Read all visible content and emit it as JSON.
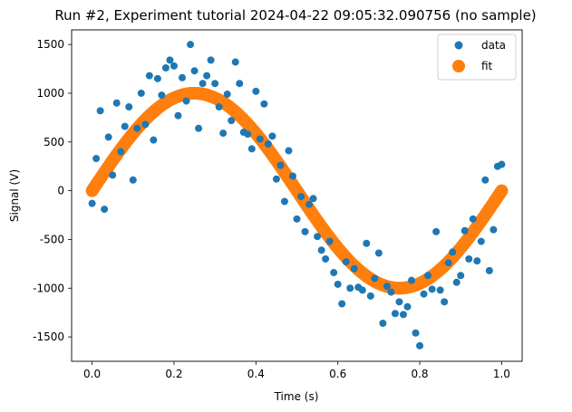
{
  "chart_data": {
    "type": "scatter",
    "title": "Run #2, Experiment tutorial 2024-04-22 09:05:32.090756 (no sample)",
    "xlabel": "Time (s)",
    "ylabel": "Signal (V)",
    "xlim": [
      -0.05,
      1.05
    ],
    "ylim": [
      -1750,
      1650
    ],
    "xticks": [
      0,
      0.2,
      0.4,
      0.6,
      0.8,
      1
    ],
    "xtick_labels": [
      "0.0",
      "0.2",
      "0.4",
      "0.6",
      "0.8",
      "1.0"
    ],
    "yticks": [
      -1500,
      -1000,
      -500,
      0,
      500,
      1000,
      1500
    ],
    "ytick_labels": [
      "-1500",
      "-1000",
      "-500",
      "0",
      "500",
      "1000",
      "1500"
    ],
    "grid": false,
    "legend_position": "upper right",
    "series": [
      {
        "name": "data",
        "color": "#1f77b4",
        "marker": "circle",
        "x": [
          0.0,
          0.01,
          0.02,
          0.03,
          0.04,
          0.05,
          0.06,
          0.07,
          0.08,
          0.09,
          0.1,
          0.11,
          0.12,
          0.13,
          0.14,
          0.15,
          0.16,
          0.17,
          0.18,
          0.19,
          0.2,
          0.21,
          0.22,
          0.23,
          0.24,
          0.25,
          0.26,
          0.27,
          0.28,
          0.29,
          0.3,
          0.31,
          0.32,
          0.33,
          0.34,
          0.35,
          0.36,
          0.37,
          0.38,
          0.39,
          0.4,
          0.41,
          0.42,
          0.43,
          0.44,
          0.45,
          0.46,
          0.47,
          0.48,
          0.49,
          0.5,
          0.51,
          0.52,
          0.53,
          0.54,
          0.55,
          0.56,
          0.57,
          0.58,
          0.59,
          0.6,
          0.61,
          0.62,
          0.63,
          0.64,
          0.65,
          0.66,
          0.67,
          0.68,
          0.69,
          0.7,
          0.71,
          0.72,
          0.73,
          0.74,
          0.75,
          0.76,
          0.77,
          0.78,
          0.79,
          0.8,
          0.81,
          0.82,
          0.83,
          0.84,
          0.85,
          0.86,
          0.87,
          0.88,
          0.89,
          0.9,
          0.91,
          0.92,
          0.93,
          0.94,
          0.95,
          0.96,
          0.97,
          0.98,
          0.99,
          1.0
        ],
        "y": [
          -130,
          330,
          820,
          -190,
          550,
          160,
          900,
          400,
          660,
          860,
          110,
          640,
          1000,
          680,
          1180,
          520,
          1150,
          980,
          1260,
          1340,
          1280,
          770,
          1160,
          920,
          1500,
          1230,
          640,
          1100,
          1180,
          1340,
          1100,
          860,
          590,
          990,
          720,
          1320,
          1100,
          600,
          580,
          430,
          1020,
          530,
          890,
          480,
          560,
          120,
          260,
          -110,
          410,
          150,
          -290,
          -60,
          -420,
          -140,
          -80,
          -470,
          -610,
          -700,
          -520,
          -840,
          -960,
          -1160,
          -730,
          -1000,
          -800,
          -990,
          -1020,
          -540,
          -1080,
          -900,
          -640,
          -1360,
          -980,
          -1040,
          -1260,
          -1140,
          -1270,
          -1190,
          -920,
          -1460,
          -1590,
          -1060,
          -870,
          -1010,
          -420,
          -1020,
          -1140,
          -740,
          -630,
          -940,
          -870,
          -410,
          -700,
          -290,
          -720,
          -520,
          110,
          -820,
          -400,
          250,
          270
        ]
      },
      {
        "name": "fit",
        "color": "#ff7f0e",
        "marker": "circle",
        "function": "1000*sin(2*pi*x)",
        "x_range": [
          0,
          1
        ],
        "amplitude": 1000
      }
    ]
  }
}
